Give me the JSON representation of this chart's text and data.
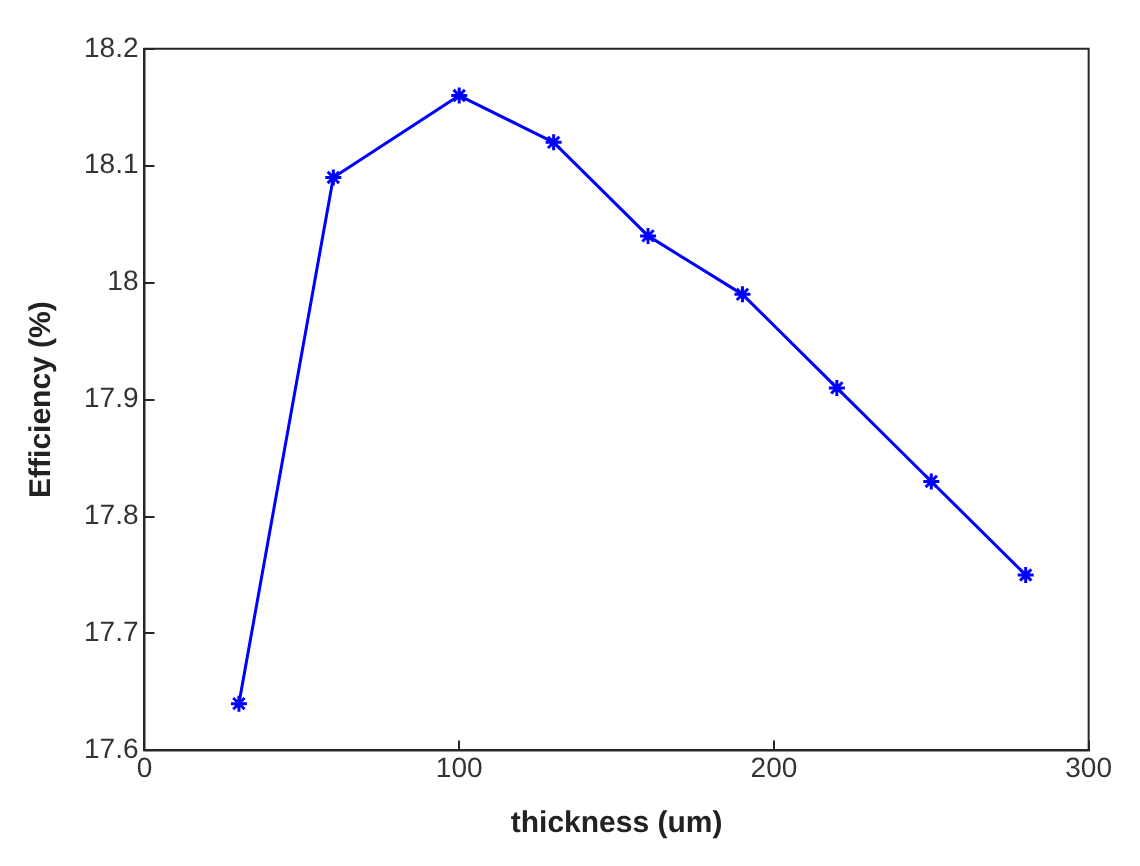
{
  "chart_data": {
    "type": "line",
    "xlabel": "thickness (um)",
    "ylabel": "Efficiency (%)",
    "x": [
      30,
      60,
      100,
      130,
      160,
      190,
      220,
      250,
      280
    ],
    "series": [
      {
        "color": "#0000ff",
        "values": [
          17.64,
          18.09,
          18.16,
          18.12,
          18.04,
          17.99,
          17.91,
          17.83,
          17.75
        ]
      }
    ],
    "xlim": [
      0,
      300
    ],
    "xticks": [
      0,
      100,
      200,
      300
    ],
    "ylim": [
      17.6,
      18.2
    ],
    "yticks": [
      17.6,
      17.7,
      17.8,
      17.9,
      18,
      18.1,
      18.2
    ],
    "grid": false,
    "legend": false,
    "marker": "cross",
    "line_style": "solid"
  }
}
